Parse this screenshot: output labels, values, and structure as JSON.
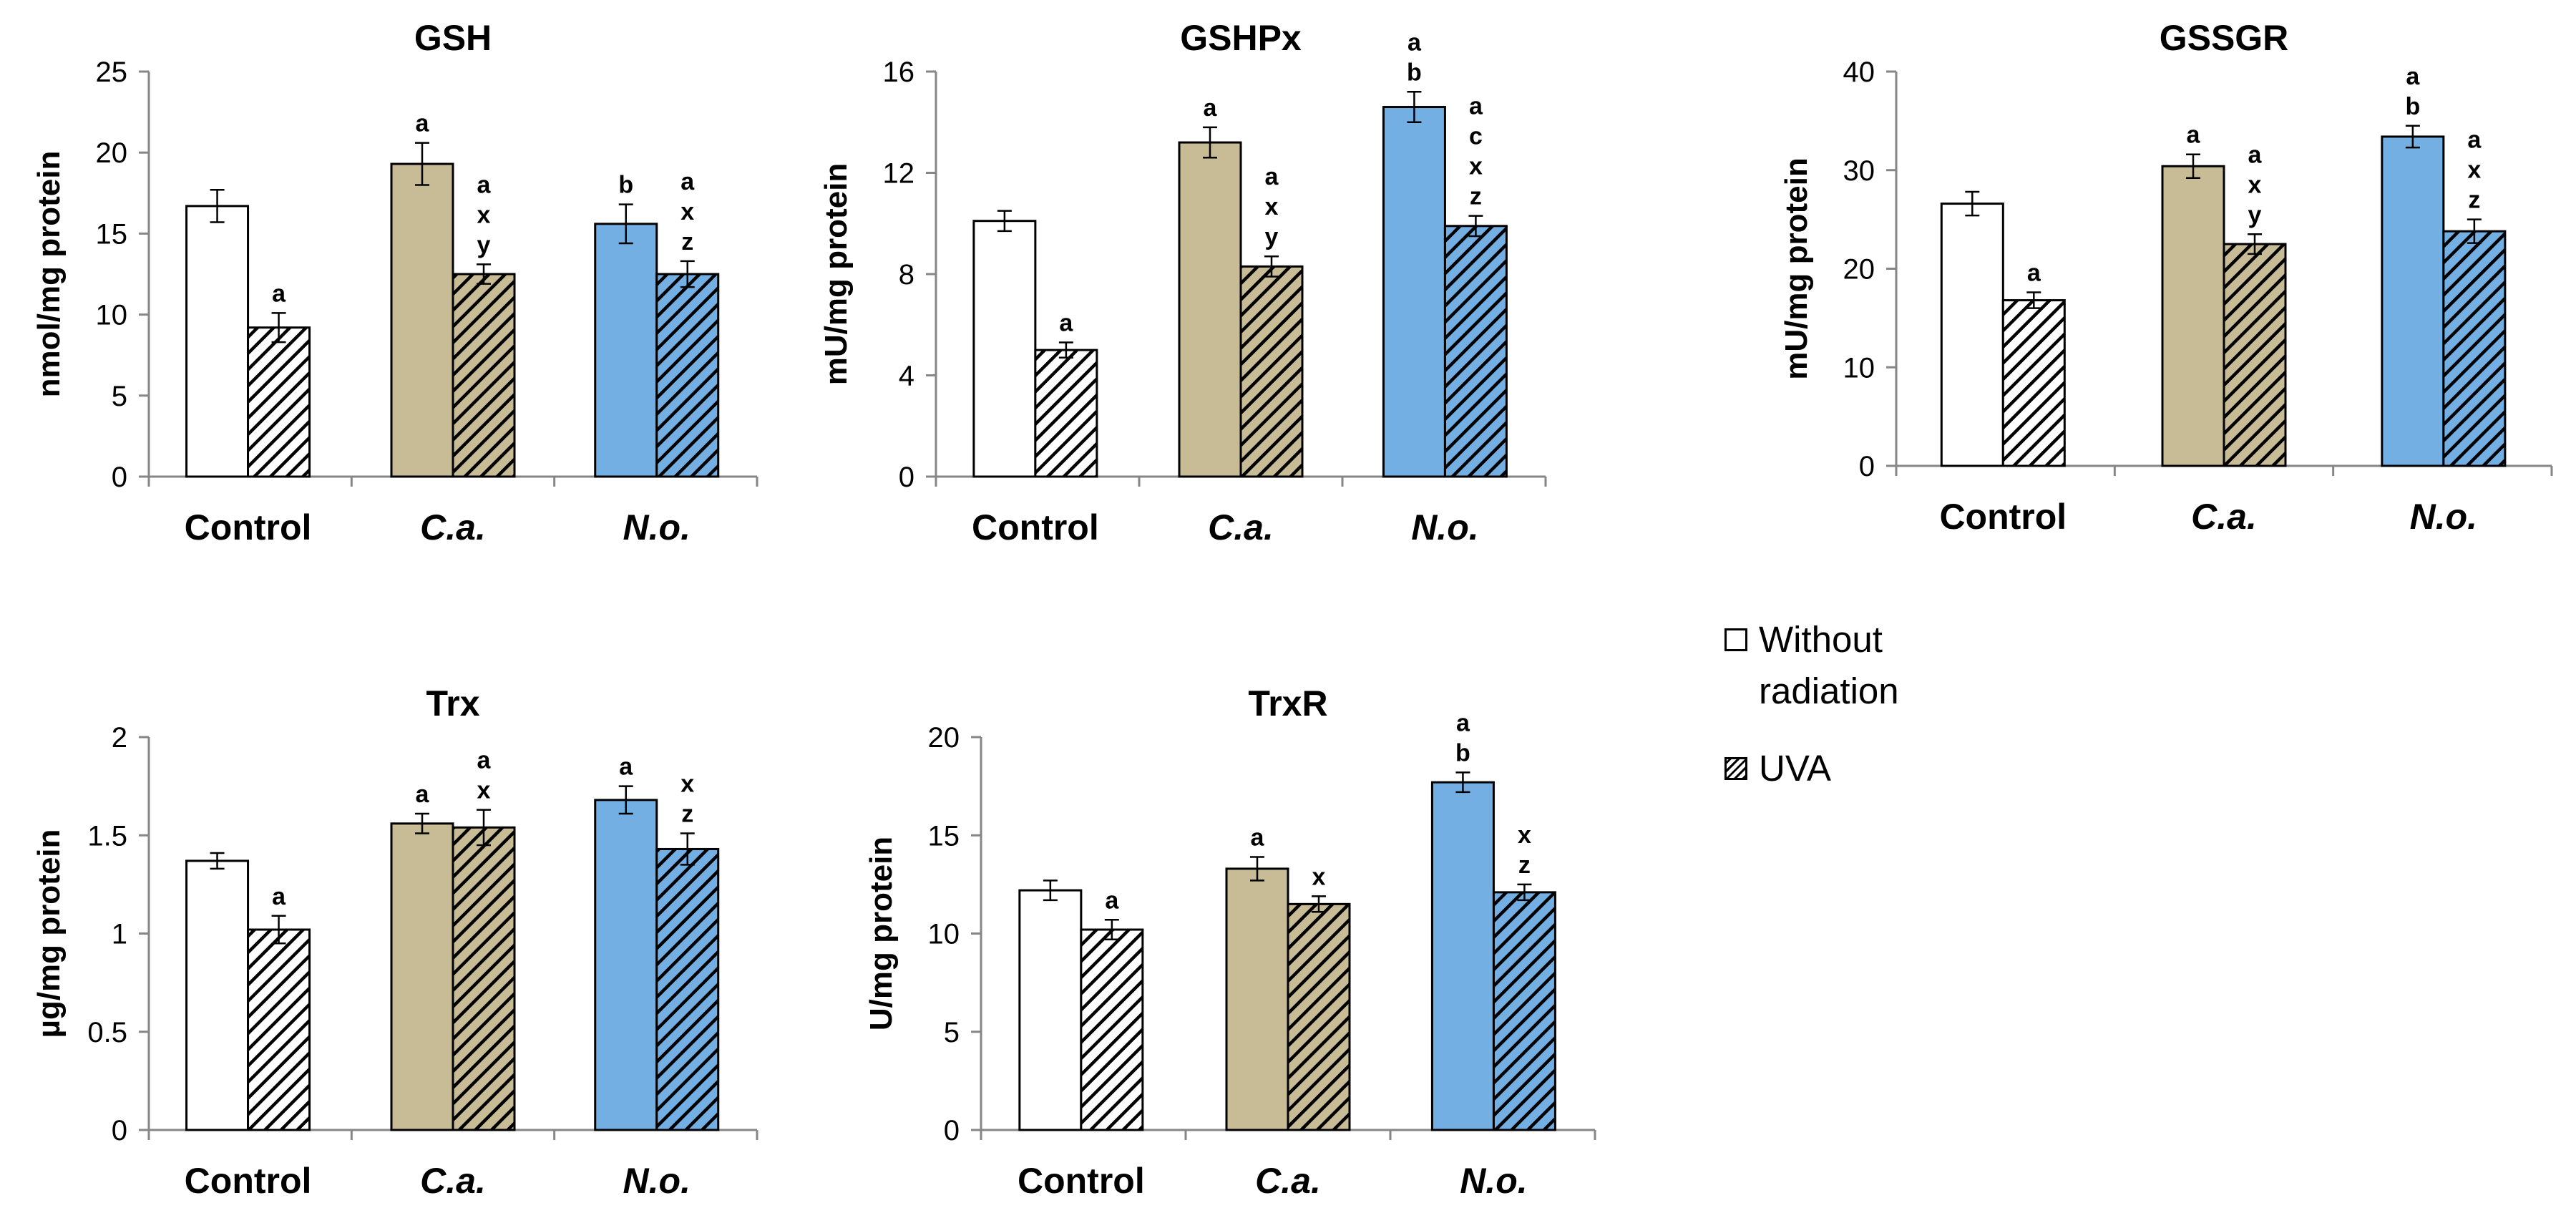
{
  "legend": {
    "without_radiation": [
      "Without",
      "radiation"
    ],
    "uva": "UVA"
  },
  "colors": {
    "control": "#ffffff",
    "ca": "#c8bc96",
    "no": "#74afe4",
    "stroke": "#000000"
  },
  "chart_data": [
    {
      "type": "bar",
      "title": "GSH",
      "ylabel": "nmol/mg protein",
      "ylim": [
        0,
        25
      ],
      "yticks": [
        "0",
        "5",
        "10",
        "15",
        "20",
        "25"
      ],
      "categories": [
        "Control",
        "C.a.",
        "N.o."
      ],
      "category_italic": [
        false,
        true,
        true
      ],
      "series": [
        {
          "name": "Without radiation",
          "values": [
            16.7,
            19.3,
            15.6
          ],
          "errors": [
            1.0,
            1.3,
            1.2
          ],
          "annotations": [
            [],
            [
              "a"
            ],
            [
              "b"
            ]
          ]
        },
        {
          "name": "UVA",
          "values": [
            9.2,
            12.5,
            12.5
          ],
          "errors": [
            0.9,
            0.6,
            0.8
          ],
          "annotations": [
            [
              "a"
            ],
            [
              "a",
              "x",
              "y"
            ],
            [
              "a",
              "x",
              "z"
            ]
          ]
        }
      ]
    },
    {
      "type": "bar",
      "title": "GSHPx",
      "ylabel": "mU/mg protein",
      "ylim": [
        0,
        16
      ],
      "yticks": [
        "0",
        "4",
        "8",
        "12",
        "16"
      ],
      "categories": [
        "Control",
        "C.a.",
        "N.o."
      ],
      "category_italic": [
        false,
        true,
        true
      ],
      "series": [
        {
          "name": "Without radiation",
          "values": [
            10.1,
            13.2,
            14.6
          ],
          "errors": [
            0.4,
            0.6,
            0.6
          ],
          "annotations": [
            [],
            [
              "a"
            ],
            [
              "a",
              "b"
            ]
          ]
        },
        {
          "name": "UVA",
          "values": [
            5.0,
            8.3,
            9.9
          ],
          "errors": [
            0.3,
            0.4,
            0.4
          ],
          "annotations": [
            [
              "a"
            ],
            [
              "a",
              "x",
              "y"
            ],
            [
              "a",
              "c",
              "x",
              "z"
            ]
          ]
        }
      ]
    },
    {
      "type": "bar",
      "title": "GSSGR",
      "ylabel": "mU/mg protein",
      "ylim": [
        0,
        40
      ],
      "yticks": [
        "0",
        "10",
        "20",
        "30",
        "40"
      ],
      "categories": [
        "Control",
        "C.a.",
        "N.o."
      ],
      "category_italic": [
        false,
        true,
        true
      ],
      "series": [
        {
          "name": "Without radiation",
          "values": [
            26.6,
            30.4,
            33.4
          ],
          "errors": [
            1.2,
            1.2,
            1.1
          ],
          "annotations": [
            [],
            [
              "a"
            ],
            [
              "a",
              "b"
            ]
          ]
        },
        {
          "name": "UVA",
          "values": [
            16.8,
            22.5,
            23.8
          ],
          "errors": [
            0.8,
            1.0,
            1.2
          ],
          "annotations": [
            [
              "a"
            ],
            [
              "a",
              "x",
              "y"
            ],
            [
              "a",
              "x",
              "z"
            ]
          ]
        }
      ]
    },
    {
      "type": "bar",
      "title": "Trx",
      "ylabel": "µg/mg protein",
      "ylim": [
        0,
        2
      ],
      "yticks": [
        "0",
        "0.5",
        "1",
        "1.5",
        "2"
      ],
      "categories": [
        "Control",
        "C.a.",
        "N.o."
      ],
      "category_italic": [
        false,
        true,
        true
      ],
      "series": [
        {
          "name": "Without radiation",
          "values": [
            1.37,
            1.56,
            1.68
          ],
          "errors": [
            0.04,
            0.05,
            0.07
          ],
          "annotations": [
            [],
            [
              "a"
            ],
            [
              "a"
            ]
          ]
        },
        {
          "name": "UVA",
          "values": [
            1.02,
            1.54,
            1.43
          ],
          "errors": [
            0.07,
            0.09,
            0.08
          ],
          "annotations": [
            [
              "a"
            ],
            [
              "a",
              "x"
            ],
            [
              "x",
              "z"
            ]
          ]
        }
      ]
    },
    {
      "type": "bar",
      "title": "TrxR",
      "ylabel": "U/mg protein",
      "ylim": [
        0,
        20
      ],
      "yticks": [
        "0",
        "5",
        "10",
        "15",
        "20"
      ],
      "categories": [
        "Control",
        "C.a.",
        "N.o."
      ],
      "category_italic": [
        false,
        true,
        true
      ],
      "series": [
        {
          "name": "Without radiation",
          "values": [
            12.2,
            13.3,
            17.7
          ],
          "errors": [
            0.5,
            0.6,
            0.5
          ],
          "annotations": [
            [],
            [
              "a"
            ],
            [
              "a",
              "b"
            ]
          ]
        },
        {
          "name": "UVA",
          "values": [
            10.2,
            11.5,
            12.1
          ],
          "errors": [
            0.5,
            0.4,
            0.4
          ],
          "annotations": [
            [
              "a"
            ],
            [
              "x"
            ],
            [
              "x",
              "z"
            ]
          ]
        }
      ]
    }
  ]
}
